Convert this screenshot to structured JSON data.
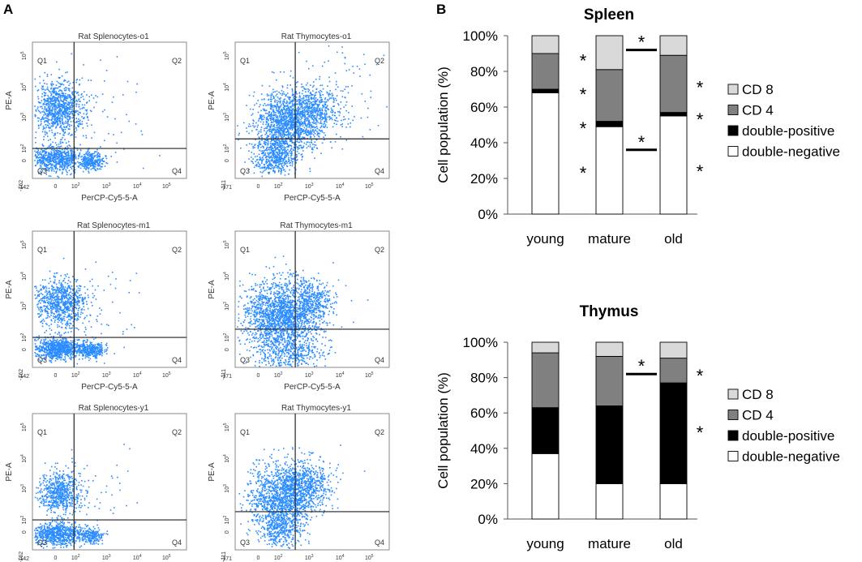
{
  "panels": {
    "a_label": "A",
    "b_label": "B"
  },
  "flow": {
    "plots": [
      {
        "title": "Rat Splenocytes-o1",
        "tissue": "spleen",
        "cols": 0,
        "row": 0
      },
      {
        "title": "Rat Thymocytes-o1",
        "tissue": "thymus",
        "cols": 1,
        "row": 0
      },
      {
        "title": "Rat Splenocytes-m1",
        "tissue": "spleen",
        "cols": 0,
        "row": 1
      },
      {
        "title": "Rat Thymocytes-m1",
        "tissue": "thymus",
        "cols": 1,
        "row": 1
      },
      {
        "title": "Rat Splenocytes-y1",
        "tissue": "spleen",
        "cols": 0,
        "row": 2
      },
      {
        "title": "Rat Thymocytes-y1",
        "tissue": "thymus",
        "cols": 1,
        "row": 2
      }
    ],
    "quadrants": [
      "Q1",
      "Q2",
      "Q3",
      "Q4"
    ],
    "xlabel": "PerCP-Cy5-5-A",
    "ylabel": "PE-A",
    "spleen_xmin": "-142",
    "thymus_xmin": "-171",
    "spleen_ymin": "-162",
    "thymus_ymin": "-111",
    "tick_labels": [
      "0",
      "10",
      "10",
      "10",
      "10"
    ],
    "tick_exps": [
      "",
      "2",
      "3",
      "4",
      "5"
    ],
    "dot_color": "#2b8cff"
  },
  "chart_data": [
    {
      "type": "bar",
      "stacked": true,
      "title": "Spleen",
      "ylabel": "Cell population (%)",
      "ylim": [
        0,
        100
      ],
      "yticks": [
        "0%",
        "20%",
        "40%",
        "60%",
        "80%",
        "100%"
      ],
      "categories": [
        "young",
        "mature",
        "old"
      ],
      "series": [
        {
          "name": "double-negative",
          "color": "#ffffff",
          "values": [
            68,
            49,
            55
          ]
        },
        {
          "name": "double-positive",
          "color": "#000000",
          "values": [
            2,
            3,
            2
          ]
        },
        {
          "name": "CD 4",
          "color": "#808080",
          "values": [
            20,
            29,
            32
          ]
        },
        {
          "name": "CD 8",
          "color": "#d9d9d9",
          "values": [
            10,
            19,
            11
          ]
        }
      ],
      "legend": [
        "CD 8",
        "CD 4",
        "double-positive",
        "double-negative"
      ],
      "significance": [
        {
          "category": "mature",
          "side": "left",
          "y": 88,
          "mark": "*"
        },
        {
          "category": "mature",
          "side": "left",
          "y": 69,
          "mark": "*"
        },
        {
          "category": "mature",
          "side": "left",
          "y": 50,
          "mark": "*"
        },
        {
          "category": "mature",
          "side": "left",
          "y": 25,
          "mark": "*"
        },
        {
          "category": "old",
          "side": "right",
          "y": 73,
          "mark": "*"
        },
        {
          "category": "old",
          "side": "right",
          "y": 55,
          "mark": "*"
        },
        {
          "category": "old",
          "side": "right",
          "y": 26,
          "mark": "*"
        }
      ],
      "brackets": [
        {
          "y": 92,
          "mark": "*"
        },
        {
          "y": 36,
          "mark": "*"
        }
      ]
    },
    {
      "type": "bar",
      "stacked": true,
      "title": "Thymus",
      "ylabel": "Cell population (%)",
      "ylim": [
        0,
        100
      ],
      "yticks": [
        "0%",
        "20%",
        "40%",
        "60%",
        "80%",
        "100%"
      ],
      "categories": [
        "young",
        "mature",
        "old"
      ],
      "series": [
        {
          "name": "double-negative",
          "color": "#ffffff",
          "values": [
            37,
            20,
            20
          ]
        },
        {
          "name": "double-positive",
          "color": "#000000",
          "values": [
            26,
            44,
            57
          ]
        },
        {
          "name": "CD 4",
          "color": "#808080",
          "values": [
            31,
            28,
            14
          ]
        },
        {
          "name": "CD 8",
          "color": "#d9d9d9",
          "values": [
            6,
            8,
            9
          ]
        }
      ],
      "legend": [
        "CD 8",
        "CD 4",
        "double-positive",
        "double-negative"
      ],
      "significance": [
        {
          "category": "old",
          "side": "right",
          "y": 83,
          "mark": "*"
        },
        {
          "category": "old",
          "side": "right",
          "y": 51,
          "mark": "*"
        }
      ],
      "brackets": [
        {
          "y": 82,
          "mark": "*"
        }
      ]
    }
  ]
}
